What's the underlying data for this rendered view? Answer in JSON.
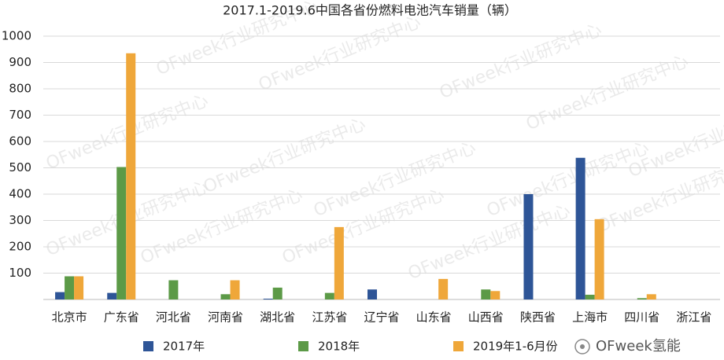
{
  "chart_data": {
    "type": "bar",
    "title": "2017.1-2019.6中国各省份燃料电池汽车销量（辆）",
    "categories": [
      "北京市",
      "广东省",
      "河北省",
      "河南省",
      "湖北省",
      "江苏省",
      "辽宁省",
      "山东省",
      "山西省",
      "陕西省",
      "上海市",
      "四川省",
      "浙江省"
    ],
    "series": [
      {
        "name": "2017年",
        "color": "#2e5597",
        "values": [
          28,
          25,
          0,
          0,
          3,
          0,
          38,
          0,
          0,
          400,
          538,
          0,
          0
        ]
      },
      {
        "name": "2018年",
        "color": "#5c9a47",
        "values": [
          88,
          503,
          73,
          20,
          45,
          25,
          0,
          0,
          38,
          0,
          18,
          5,
          0
        ]
      },
      {
        "name": "2019年1-6月份",
        "color": "#efa73a",
        "values": [
          88,
          935,
          0,
          73,
          0,
          275,
          0,
          78,
          32,
          0,
          305,
          20,
          0
        ]
      }
    ],
    "ylim": [
      0,
      1000
    ],
    "yticks": [
      100,
      200,
      300,
      400,
      500,
      600,
      700,
      800,
      900,
      1000
    ],
    "grid": true,
    "legend": "bottom",
    "watermark": "OFweek行业研究中心",
    "brand": "OFweek氢能"
  }
}
